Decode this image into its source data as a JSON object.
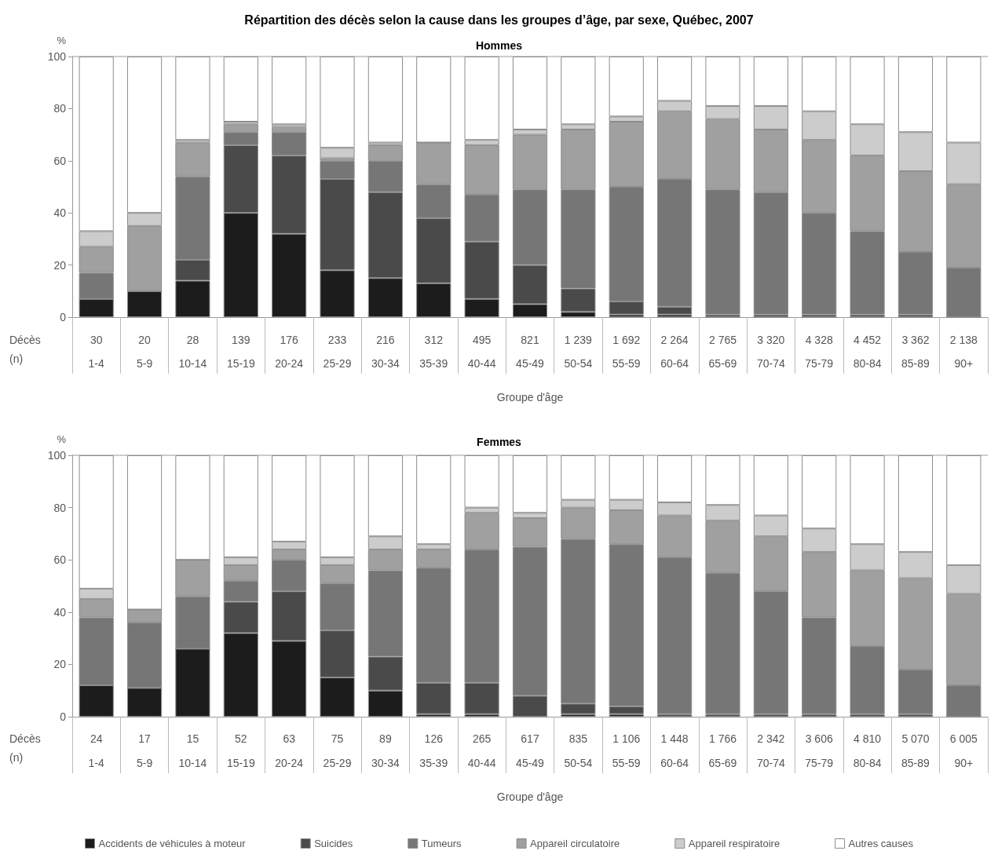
{
  "chart_data": [
    {
      "type": "bar",
      "title": "Répartition des décès selon la cause dans les groupes d’âge, par sexe, Québec, 2007",
      "subtitle": "Hommes",
      "xlabel": "Groupe d'âge",
      "ylabel": "%",
      "stacked": true,
      "grid": false,
      "legend": false,
      "categories": [
        "1-4",
        "5-9",
        "10-14",
        "15-19",
        "20-24",
        "25-29",
        "30-34",
        "35-39",
        "40-44",
        "45-49",
        "50-54",
        "55-59",
        "60-64",
        "65-69",
        "70-74",
        "75-79",
        "80-84",
        "85-89",
        "90+"
      ],
      "ylim": [
        0,
        100
      ],
      "yticks": [
        0,
        20,
        40,
        60,
        80,
        100
      ],
      "series": [
        {
          "color": "#1c1c1c",
          "values": [
            7,
            10,
            14,
            40,
            32,
            18,
            15,
            13,
            7,
            5,
            2,
            1,
            1,
            0,
            0,
            0,
            0,
            0,
            0
          ]
        },
        {
          "color": "#4a4a4a",
          "values": [
            0,
            0,
            8,
            26,
            30,
            35,
            33,
            25,
            22,
            15,
            9,
            5,
            3,
            1,
            1,
            1,
            1,
            1,
            0
          ]
        },
        {
          "color": "#767676",
          "values": [
            10,
            0,
            32,
            5,
            9,
            7,
            12,
            13,
            18,
            29,
            38,
            44,
            49,
            48,
            47,
            39,
            32,
            24,
            19
          ]
        },
        {
          "color": "#a0a0a0",
          "values": [
            10,
            25,
            13,
            3,
            2,
            1,
            6,
            16,
            19,
            21,
            23,
            25,
            26,
            27,
            24,
            28,
            29,
            31,
            32
          ]
        },
        {
          "color": "#cccccc",
          "values": [
            6,
            5,
            1,
            1,
            1,
            4,
            1,
            0,
            2,
            2,
            2,
            2,
            4,
            5,
            9,
            11,
            12,
            15,
            16
          ]
        },
        {
          "color": "#ffffff",
          "values": [
            67,
            60,
            32,
            25,
            26,
            35,
            33,
            33,
            32,
            28,
            26,
            23,
            17,
            19,
            19,
            21,
            26,
            29,
            33
          ]
        }
      ],
      "annotations": [
        "Décès (n)",
        "30",
        "20",
        "28",
        "139",
        "176",
        "233",
        "216",
        "312",
        "495",
        "821",
        "1 239",
        "1 692",
        "2 264",
        "2 765",
        "3 320",
        "4 328",
        "4 452",
        "3 362",
        "2 138"
      ]
    },
    {
      "type": "bar",
      "title": "Femmes",
      "xlabel": "Groupe d'âge",
      "ylabel": "%",
      "stacked": true,
      "grid": false,
      "legend": "bottom",
      "categories": [
        "1-4",
        "5-9",
        "10-14",
        "15-19",
        "20-24",
        "25-29",
        "30-34",
        "35-39",
        "40-44",
        "45-49",
        "50-54",
        "55-59",
        "60-64",
        "65-69",
        "70-74",
        "75-79",
        "80-84",
        "85-89",
        "90+"
      ],
      "ylim": [
        0,
        100
      ],
      "yticks": [
        0,
        20,
        40,
        60,
        80,
        100
      ],
      "series": [
        {
          "name": "Accidents de véhicules à moteur",
          "color": "#1c1c1c",
          "values": [
            12,
            11,
            26,
            32,
            29,
            15,
            10,
            1,
            1,
            0,
            1,
            1,
            0,
            0,
            0,
            0,
            0,
            0,
            0
          ]
        },
        {
          "name": "Suicides",
          "color": "#4a4a4a",
          "values": [
            0,
            0,
            0,
            12,
            19,
            18,
            13,
            12,
            12,
            8,
            4,
            3,
            1,
            1,
            1,
            1,
            1,
            1,
            0
          ]
        },
        {
          "name": "Tumeurs",
          "color": "#767676",
          "values": [
            26,
            25,
            20,
            8,
            12,
            18,
            33,
            44,
            51,
            57,
            63,
            62,
            60,
            54,
            47,
            37,
            26,
            17,
            12
          ]
        },
        {
          "name": "Appareil circulatoire",
          "color": "#a0a0a0",
          "values": [
            7,
            5,
            14,
            6,
            4,
            7,
            8,
            7,
            14,
            11,
            12,
            13,
            16,
            20,
            21,
            25,
            29,
            35,
            35
          ]
        },
        {
          "name": "Appareil respiratoire",
          "color": "#cccccc",
          "values": [
            4,
            0,
            0,
            3,
            3,
            3,
            5,
            2,
            2,
            2,
            3,
            4,
            5,
            6,
            8,
            9,
            10,
            10,
            11
          ]
        },
        {
          "name": "Autres causes",
          "color": "#ffffff",
          "values": [
            51,
            59,
            40,
            39,
            33,
            39,
            31,
            34,
            20,
            22,
            17,
            17,
            18,
            19,
            23,
            28,
            34,
            37,
            42
          ]
        }
      ],
      "annotations": [
        "Décès (n)",
        "24",
        "17",
        "15",
        "52",
        "63",
        "75",
        "89",
        "126",
        "265",
        "617",
        "835",
        "1 106",
        "1 448",
        "1 766",
        "2 342",
        "3 606",
        "4 810",
        "5 070",
        "6 005"
      ]
    }
  ]
}
